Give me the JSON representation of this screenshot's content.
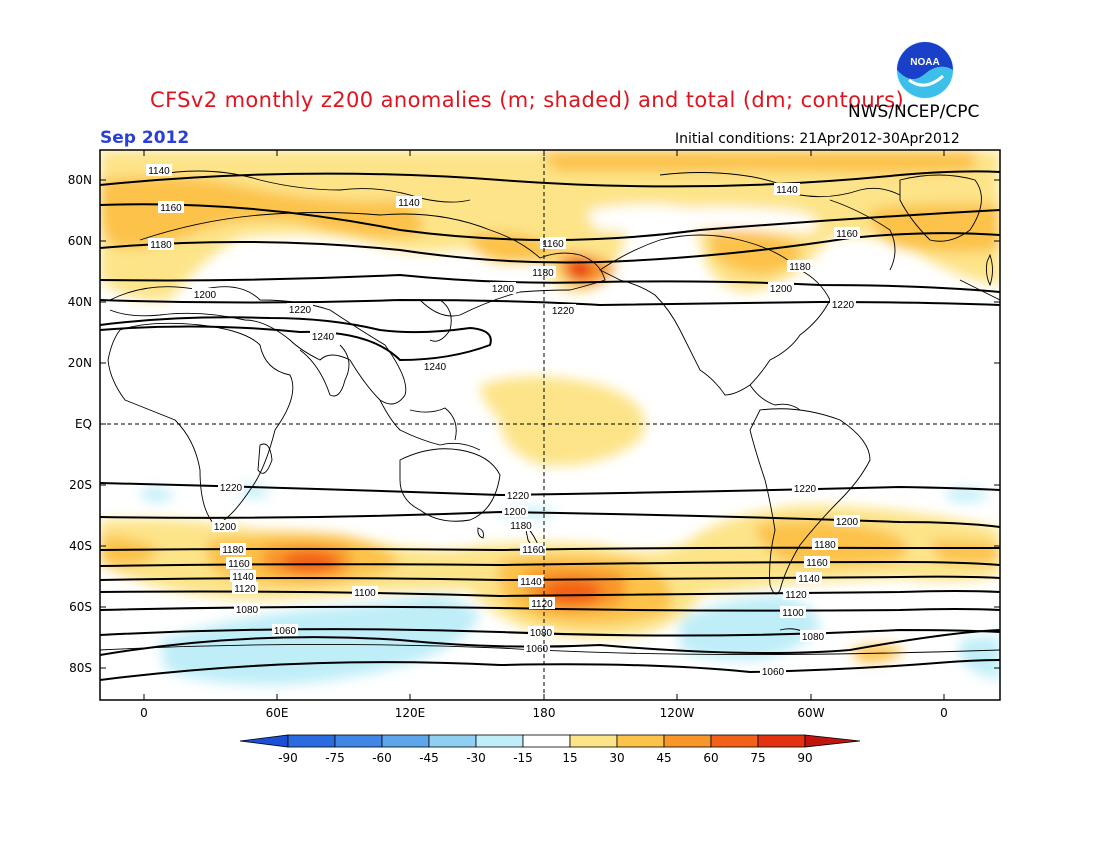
{
  "header": {
    "title": "CFSv2 monthly z200 anomalies (m; shaded) and total (dm; contours)",
    "agency": "NWS/NCEP/CPC",
    "month": "Sep 2012",
    "initial_conditions": "Initial conditions: 21Apr2012-30Apr2012",
    "logo_text": "NOAA"
  },
  "map": {
    "lat_labels": [
      "80N",
      "60N",
      "40N",
      "20N",
      "EQ",
      "20S",
      "40S",
      "60S",
      "80S"
    ],
    "lon_labels": [
      "0",
      "60E",
      "120E",
      "180",
      "120W",
      "60W",
      "0"
    ]
  },
  "contours": {
    "labels": [
      "1140",
      "1160",
      "1180",
      "1200",
      "1220",
      "1240",
      "1060",
      "1080",
      "1100",
      "1120"
    ]
  },
  "colorbar": {
    "ticks": [
      "-90",
      "-75",
      "-60",
      "-45",
      "-30",
      "-15",
      "15",
      "30",
      "45",
      "60",
      "75",
      "90"
    ],
    "colors": {
      "n90": "#1a4fd6",
      "n75": "#2b6be0",
      "n60": "#3f86e6",
      "n45": "#5ea6ec",
      "n30": "#8fd0f2",
      "n15": "#bfeef8",
      "zero": "#ffffff",
      "p15": "#fde489",
      "p30": "#fcc24a",
      "p45": "#f9962a",
      "p60": "#f36018",
      "p75": "#e43210",
      "p90": "#c0140f"
    }
  }
}
